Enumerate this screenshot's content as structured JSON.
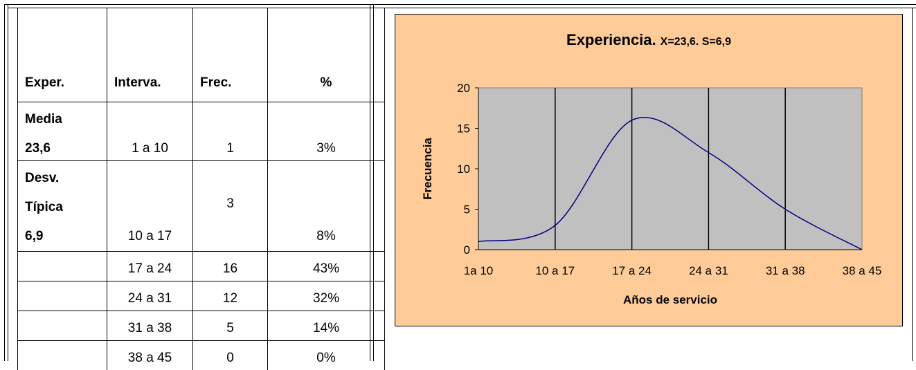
{
  "table": {
    "headers": [
      "Exper.",
      "Interva.",
      "Frec.",
      "%"
    ],
    "mean_label": "Media",
    "mean_value": "23,6",
    "sd_label_1": "Desv.",
    "sd_label_2": "Típica",
    "sd_value": "6,9",
    "rows": [
      {
        "interval": "1 a 10",
        "freq": "1",
        "pct": "3%"
      },
      {
        "interval": "10 a 17",
        "freq": "3",
        "pct": "8%"
      },
      {
        "interval": "17 a 24",
        "freq": "16",
        "pct": "43%"
      },
      {
        "interval": "24 a 31",
        "freq": "12",
        "pct": "32%"
      },
      {
        "interval": "31 a 38",
        "freq": "5",
        "pct": "14%"
      },
      {
        "interval": "38 a 45",
        "freq": "0",
        "pct": "0%"
      }
    ]
  },
  "chart_data": {
    "type": "line",
    "title": "Experiencia.",
    "subtitle": "X=23,6. S=6,9",
    "xlabel": "Años de servicio",
    "ylabel": "Frecuencia",
    "categories": [
      "1a 10",
      "10 a 17",
      "17 a 24",
      "24 a 31",
      "31 a 38",
      "38 a 45"
    ],
    "values": [
      1,
      3,
      16,
      12,
      5,
      0
    ],
    "ylim": [
      0,
      20
    ],
    "yticks": [
      "0",
      "5",
      "10",
      "15",
      "20"
    ],
    "smoothed": true,
    "grid": "vertical",
    "plot_color": "#c0c0c0",
    "background_color": "#ffcc99",
    "line_color": "#000080"
  }
}
